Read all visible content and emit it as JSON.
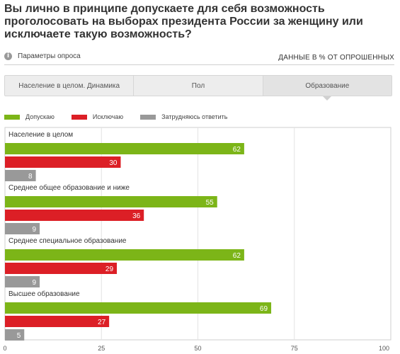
{
  "question": "Вы лично в принципе допускаете для себя возможность проголосовать на выборах президента России за женщину или исключаете такую возможность?",
  "params_label": "Параметры опроса",
  "units_label": "ДАННЫЕ В % ОТ ОПРОШЕННЫХ",
  "tabs": [
    {
      "label": "Население в целом. Динамика",
      "active": false
    },
    {
      "label": "Пол",
      "active": false
    },
    {
      "label": "Образование",
      "active": true
    }
  ],
  "colors": {
    "allow": "#7cb518",
    "exclude": "#dc1f26",
    "unsure": "#999999"
  },
  "chart_data": {
    "type": "bar",
    "orientation": "horizontal",
    "series": [
      {
        "name": "Допускаю",
        "color": "#7cb518"
      },
      {
        "name": "Исключаю",
        "color": "#dc1f26"
      },
      {
        "name": "Затрудняюсь ответить",
        "color": "#999999"
      }
    ],
    "groups": [
      {
        "label": "Население в целом",
        "values": [
          62,
          30,
          8
        ]
      },
      {
        "label": "Среднее общее образование и ниже",
        "values": [
          55,
          36,
          9
        ]
      },
      {
        "label": "Среднее специальное образование",
        "values": [
          62,
          29,
          9
        ]
      },
      {
        "label": "Высшее образование",
        "values": [
          69,
          27,
          5
        ]
      }
    ],
    "xlim": [
      0,
      100
    ],
    "xticks": [
      0,
      25,
      50,
      75,
      100
    ],
    "grid": true,
    "legend": "top-left"
  }
}
